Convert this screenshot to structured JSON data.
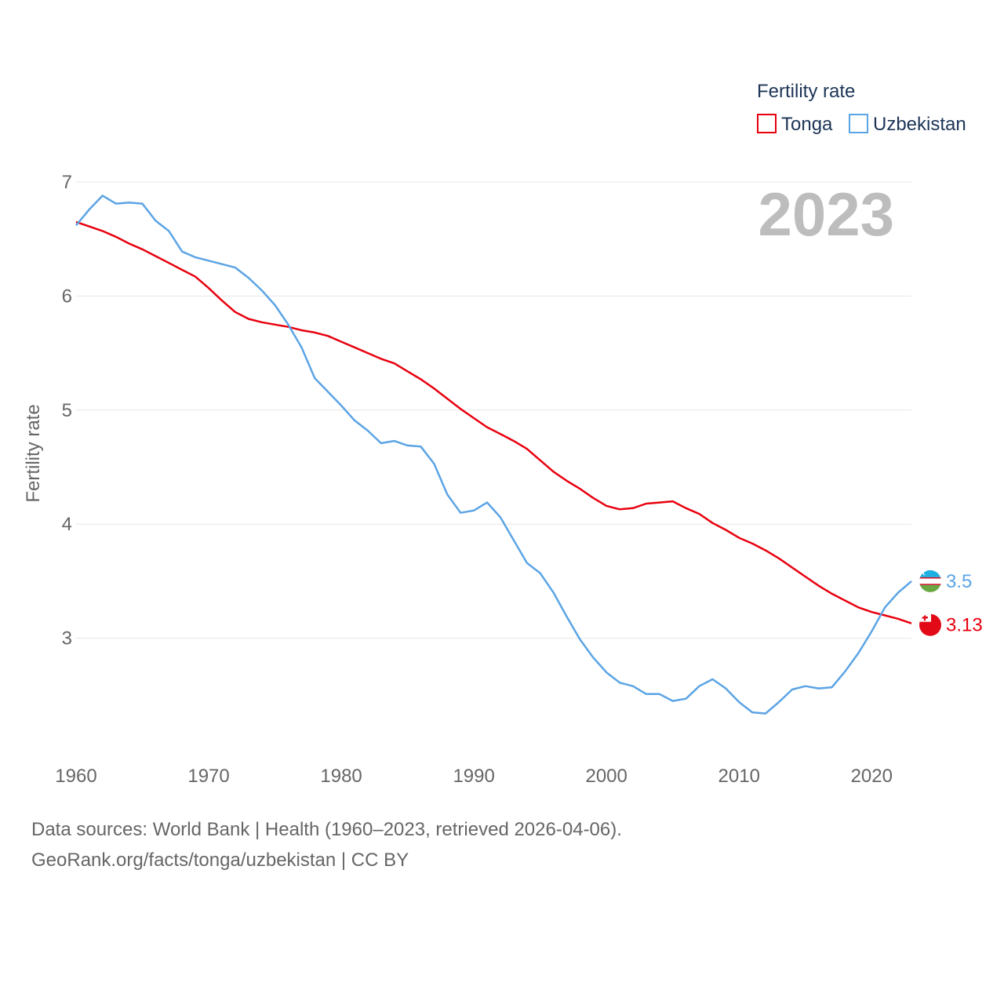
{
  "chart_data": {
    "type": "line",
    "title": "2023",
    "xlabel": "",
    "ylabel": "Fertility rate",
    "xlim": [
      1960,
      2023
    ],
    "ylim": [
      2,
      7
    ],
    "x_ticks": [
      "1960",
      "1970",
      "1980",
      "1990",
      "2000",
      "2010",
      "2020"
    ],
    "y_ticks": [
      "3",
      "4",
      "5",
      "6",
      "7"
    ],
    "legend": {
      "title": "Fertility rate",
      "position": "top-right",
      "entries": [
        "Tonga",
        "Uzbekistan"
      ]
    },
    "x": [
      1960,
      1961,
      1962,
      1963,
      1964,
      1965,
      1966,
      1967,
      1968,
      1969,
      1970,
      1971,
      1972,
      1973,
      1974,
      1975,
      1976,
      1977,
      1978,
      1979,
      1980,
      1981,
      1982,
      1983,
      1984,
      1985,
      1986,
      1987,
      1988,
      1989,
      1990,
      1991,
      1992,
      1993,
      1994,
      1995,
      1996,
      1997,
      1998,
      1999,
      2000,
      2001,
      2002,
      2003,
      2004,
      2005,
      2006,
      2007,
      2008,
      2009,
      2010,
      2011,
      2012,
      2013,
      2014,
      2015,
      2016,
      2017,
      2018,
      2019,
      2020,
      2021,
      2022,
      2023
    ],
    "series": [
      {
        "name": "Tonga",
        "color": "#e8000e",
        "end_label": "3.13",
        "values": [
          6.65,
          6.61,
          6.57,
          6.52,
          6.46,
          6.41,
          6.35,
          6.29,
          6.23,
          6.17,
          6.07,
          5.96,
          5.86,
          5.8,
          5.77,
          5.75,
          5.73,
          5.7,
          5.68,
          5.65,
          5.6,
          5.55,
          5.5,
          5.45,
          5.41,
          5.34,
          5.27,
          5.19,
          5.1,
          5.01,
          4.93,
          4.85,
          4.79,
          4.73,
          4.66,
          4.56,
          4.46,
          4.38,
          4.31,
          4.23,
          4.16,
          4.13,
          4.14,
          4.18,
          4.19,
          4.2,
          4.14,
          4.09,
          4.01,
          3.95,
          3.88,
          3.83,
          3.77,
          3.7,
          3.62,
          3.54,
          3.46,
          3.39,
          3.33,
          3.27,
          3.23,
          3.2,
          3.17,
          3.13
        ]
      },
      {
        "name": "Uzbekistan",
        "color": "#5ba4e5",
        "end_label": "3.5",
        "values": [
          6.62,
          6.76,
          6.88,
          6.81,
          6.82,
          6.81,
          6.66,
          6.57,
          6.39,
          6.34,
          6.31,
          6.28,
          6.25,
          6.16,
          6.05,
          5.92,
          5.75,
          5.55,
          5.28,
          5.16,
          5.04,
          4.91,
          4.82,
          4.71,
          4.73,
          4.69,
          4.68,
          4.53,
          4.26,
          4.1,
          4.12,
          4.19,
          4.06,
          3.86,
          3.66,
          3.57,
          3.4,
          3.19,
          2.99,
          2.83,
          2.7,
          2.61,
          2.58,
          2.51,
          2.51,
          2.45,
          2.47,
          2.58,
          2.64,
          2.56,
          2.44,
          2.35,
          2.34,
          2.44,
          2.55,
          2.58,
          2.56,
          2.57,
          2.71,
          2.87,
          3.06,
          3.27,
          3.4,
          3.5
        ]
      }
    ]
  },
  "footer": {
    "line1": "Data sources: World Bank | Health (1960–2023, retrieved 2026-04-06).",
    "line2": "GeoRank.org/facts/tonga/uzbekistan | CC BY"
  }
}
